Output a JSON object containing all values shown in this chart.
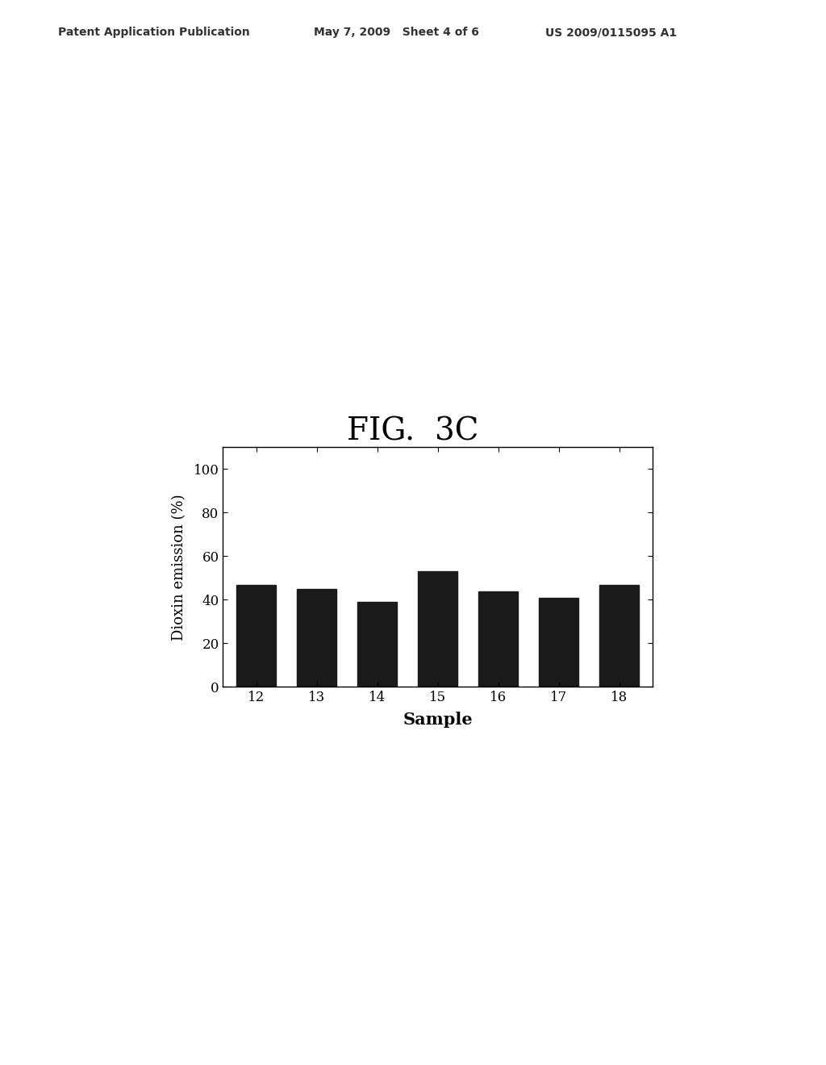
{
  "title": "FIG.  3C",
  "header_left": "Patent Application Publication",
  "header_mid": "May 7, 2009   Sheet 4 of 6",
  "header_right": "US 2009/0115095 A1",
  "categories": [
    "12",
    "13",
    "14",
    "15",
    "16",
    "17",
    "18"
  ],
  "values": [
    47,
    45,
    39,
    53,
    44,
    41,
    47
  ],
  "bar_color": "#1a1a1a",
  "xlabel": "Sample",
  "ylabel": "Dioxin emission (%)",
  "ylim": [
    0,
    110
  ],
  "yticks": [
    0,
    20,
    40,
    60,
    80,
    100
  ],
  "background_color": "#ffffff",
  "fig_title_fontsize": 28,
  "axis_label_fontsize": 13,
  "tick_fontsize": 12,
  "header_fontsize": 10
}
